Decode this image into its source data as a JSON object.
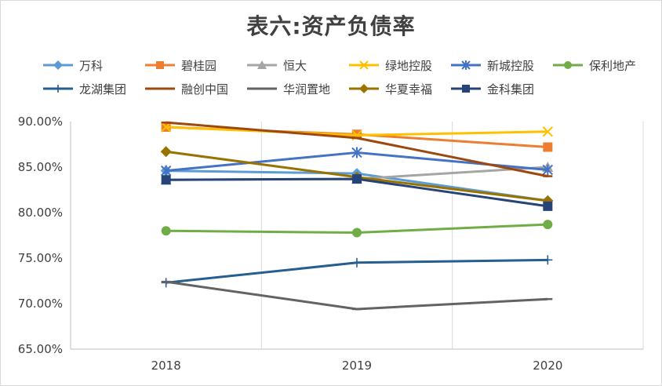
{
  "chart_data": {
    "type": "line",
    "title": "表六:资产负债率",
    "categories": [
      "2018",
      "2019",
      "2020"
    ],
    "y_ticks": [
      "90.00%",
      "85.00%",
      "80.00%",
      "75.00%",
      "70.00%",
      "65.00%"
    ],
    "ylim": [
      65,
      90
    ],
    "grid": "vertical",
    "legend_position": "top",
    "series": [
      {
        "name": "万科",
        "values": [
          84.6,
          84.3,
          81.3
        ],
        "color": "#5b9bd5",
        "marker": "diamond"
      },
      {
        "name": "碧桂园",
        "values": [
          89.4,
          88.6,
          87.2
        ],
        "color": "#ed7d31",
        "marker": "square"
      },
      {
        "name": "恒大",
        "values": [
          83.6,
          83.7,
          85.0
        ],
        "color": "#a5a5a5",
        "marker": "triangle"
      },
      {
        "name": "绿地控股",
        "values": [
          89.4,
          88.5,
          88.9
        ],
        "color": "#ffc000",
        "marker": "x"
      },
      {
        "name": "新城控股",
        "values": [
          84.6,
          86.6,
          84.7
        ],
        "color": "#4472c4",
        "marker": "star"
      },
      {
        "name": "保利地产",
        "values": [
          78.0,
          77.8,
          78.7
        ],
        "color": "#70ad47",
        "marker": "circle"
      },
      {
        "name": "龙湖集团",
        "values": [
          72.3,
          74.5,
          74.8
        ],
        "color": "#255e91",
        "marker": "plus"
      },
      {
        "name": "融创中国",
        "values": [
          89.9,
          88.2,
          84.0
        ],
        "color": "#9e480e",
        "marker": "dash"
      },
      {
        "name": "华润置地",
        "values": [
          72.4,
          69.4,
          70.5
        ],
        "color": "#636363",
        "marker": "dash"
      },
      {
        "name": "华夏幸福",
        "values": [
          86.7,
          83.9,
          81.3
        ],
        "color": "#997300",
        "marker": "diamond"
      },
      {
        "name": "金科集团",
        "values": [
          83.6,
          83.7,
          80.7
        ],
        "color": "#264478",
        "marker": "square"
      }
    ]
  }
}
